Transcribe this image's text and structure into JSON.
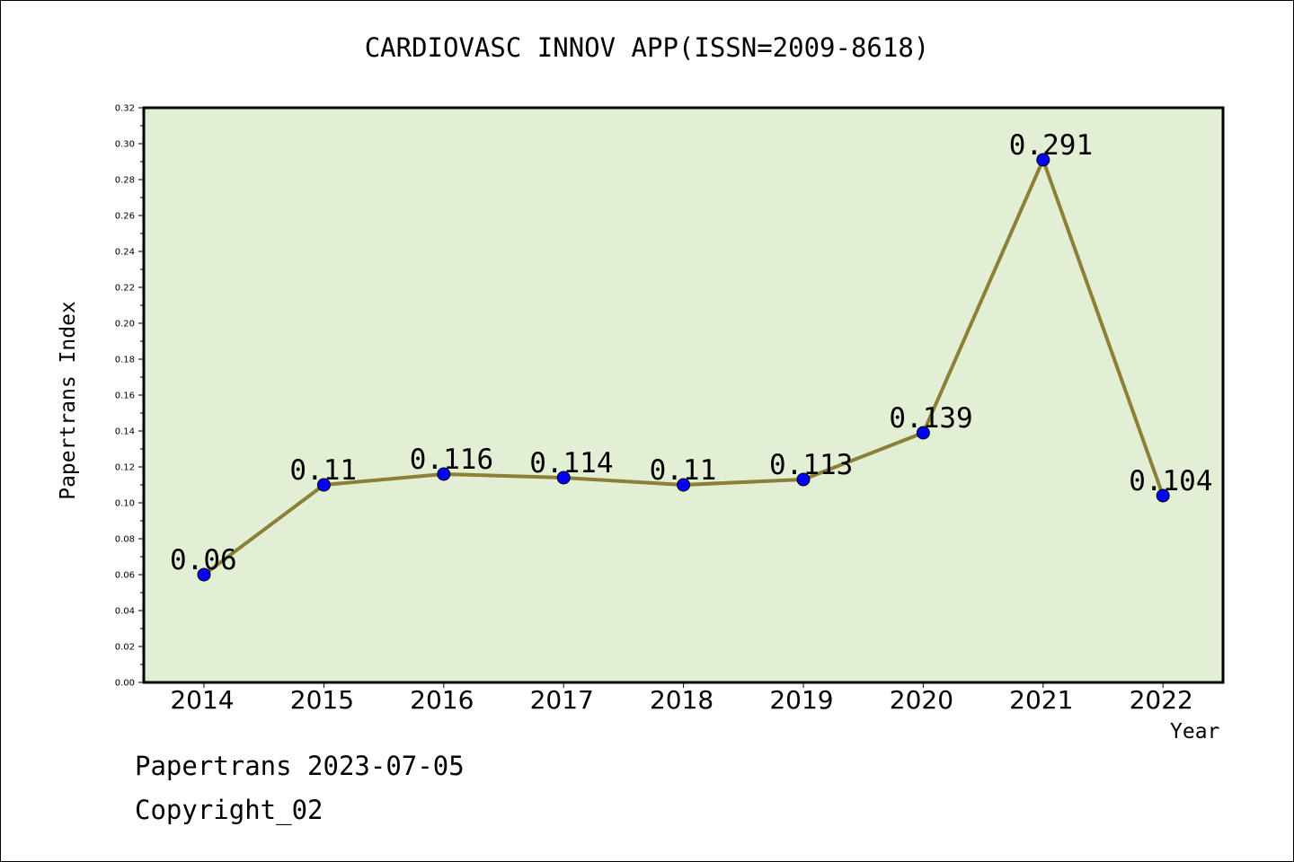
{
  "chart_data": {
    "type": "line",
    "title": "CARDIOVASC INNOV APP(ISSN=2009-8618)",
    "xlabel": "Year",
    "ylabel": "Papertrans Index",
    "categories": [
      "2014",
      "2015",
      "2016",
      "2017",
      "2018",
      "2019",
      "2020",
      "2021",
      "2022"
    ],
    "series": [
      {
        "values": [
          0.06,
          0.11,
          0.116,
          0.114,
          0.11,
          0.113,
          0.139,
          0.291,
          0.104
        ],
        "data_labels": [
          "0.06",
          "0.11",
          "0.116",
          "0.114",
          "0.11",
          "0.113",
          "0.139",
          "0.291",
          "0.104"
        ]
      }
    ],
    "ylim": [
      0,
      0.32
    ],
    "yticks": [
      "0.00",
      "0.02",
      "0.04",
      "0.06",
      "0.08",
      "0.10",
      "0.12",
      "0.14",
      "0.16",
      "0.18",
      "0.20",
      "0.22",
      "0.24",
      "0.26",
      "0.28",
      "0.30",
      "0.32"
    ],
    "grid": false,
    "colors": {
      "plot_background": "#e2efd4",
      "line": "#8c7f38",
      "marker": "#0000ff"
    }
  },
  "footer": {
    "date_text": "Papertrans 2023-07-05",
    "copyright_text": "Copyright_02"
  }
}
